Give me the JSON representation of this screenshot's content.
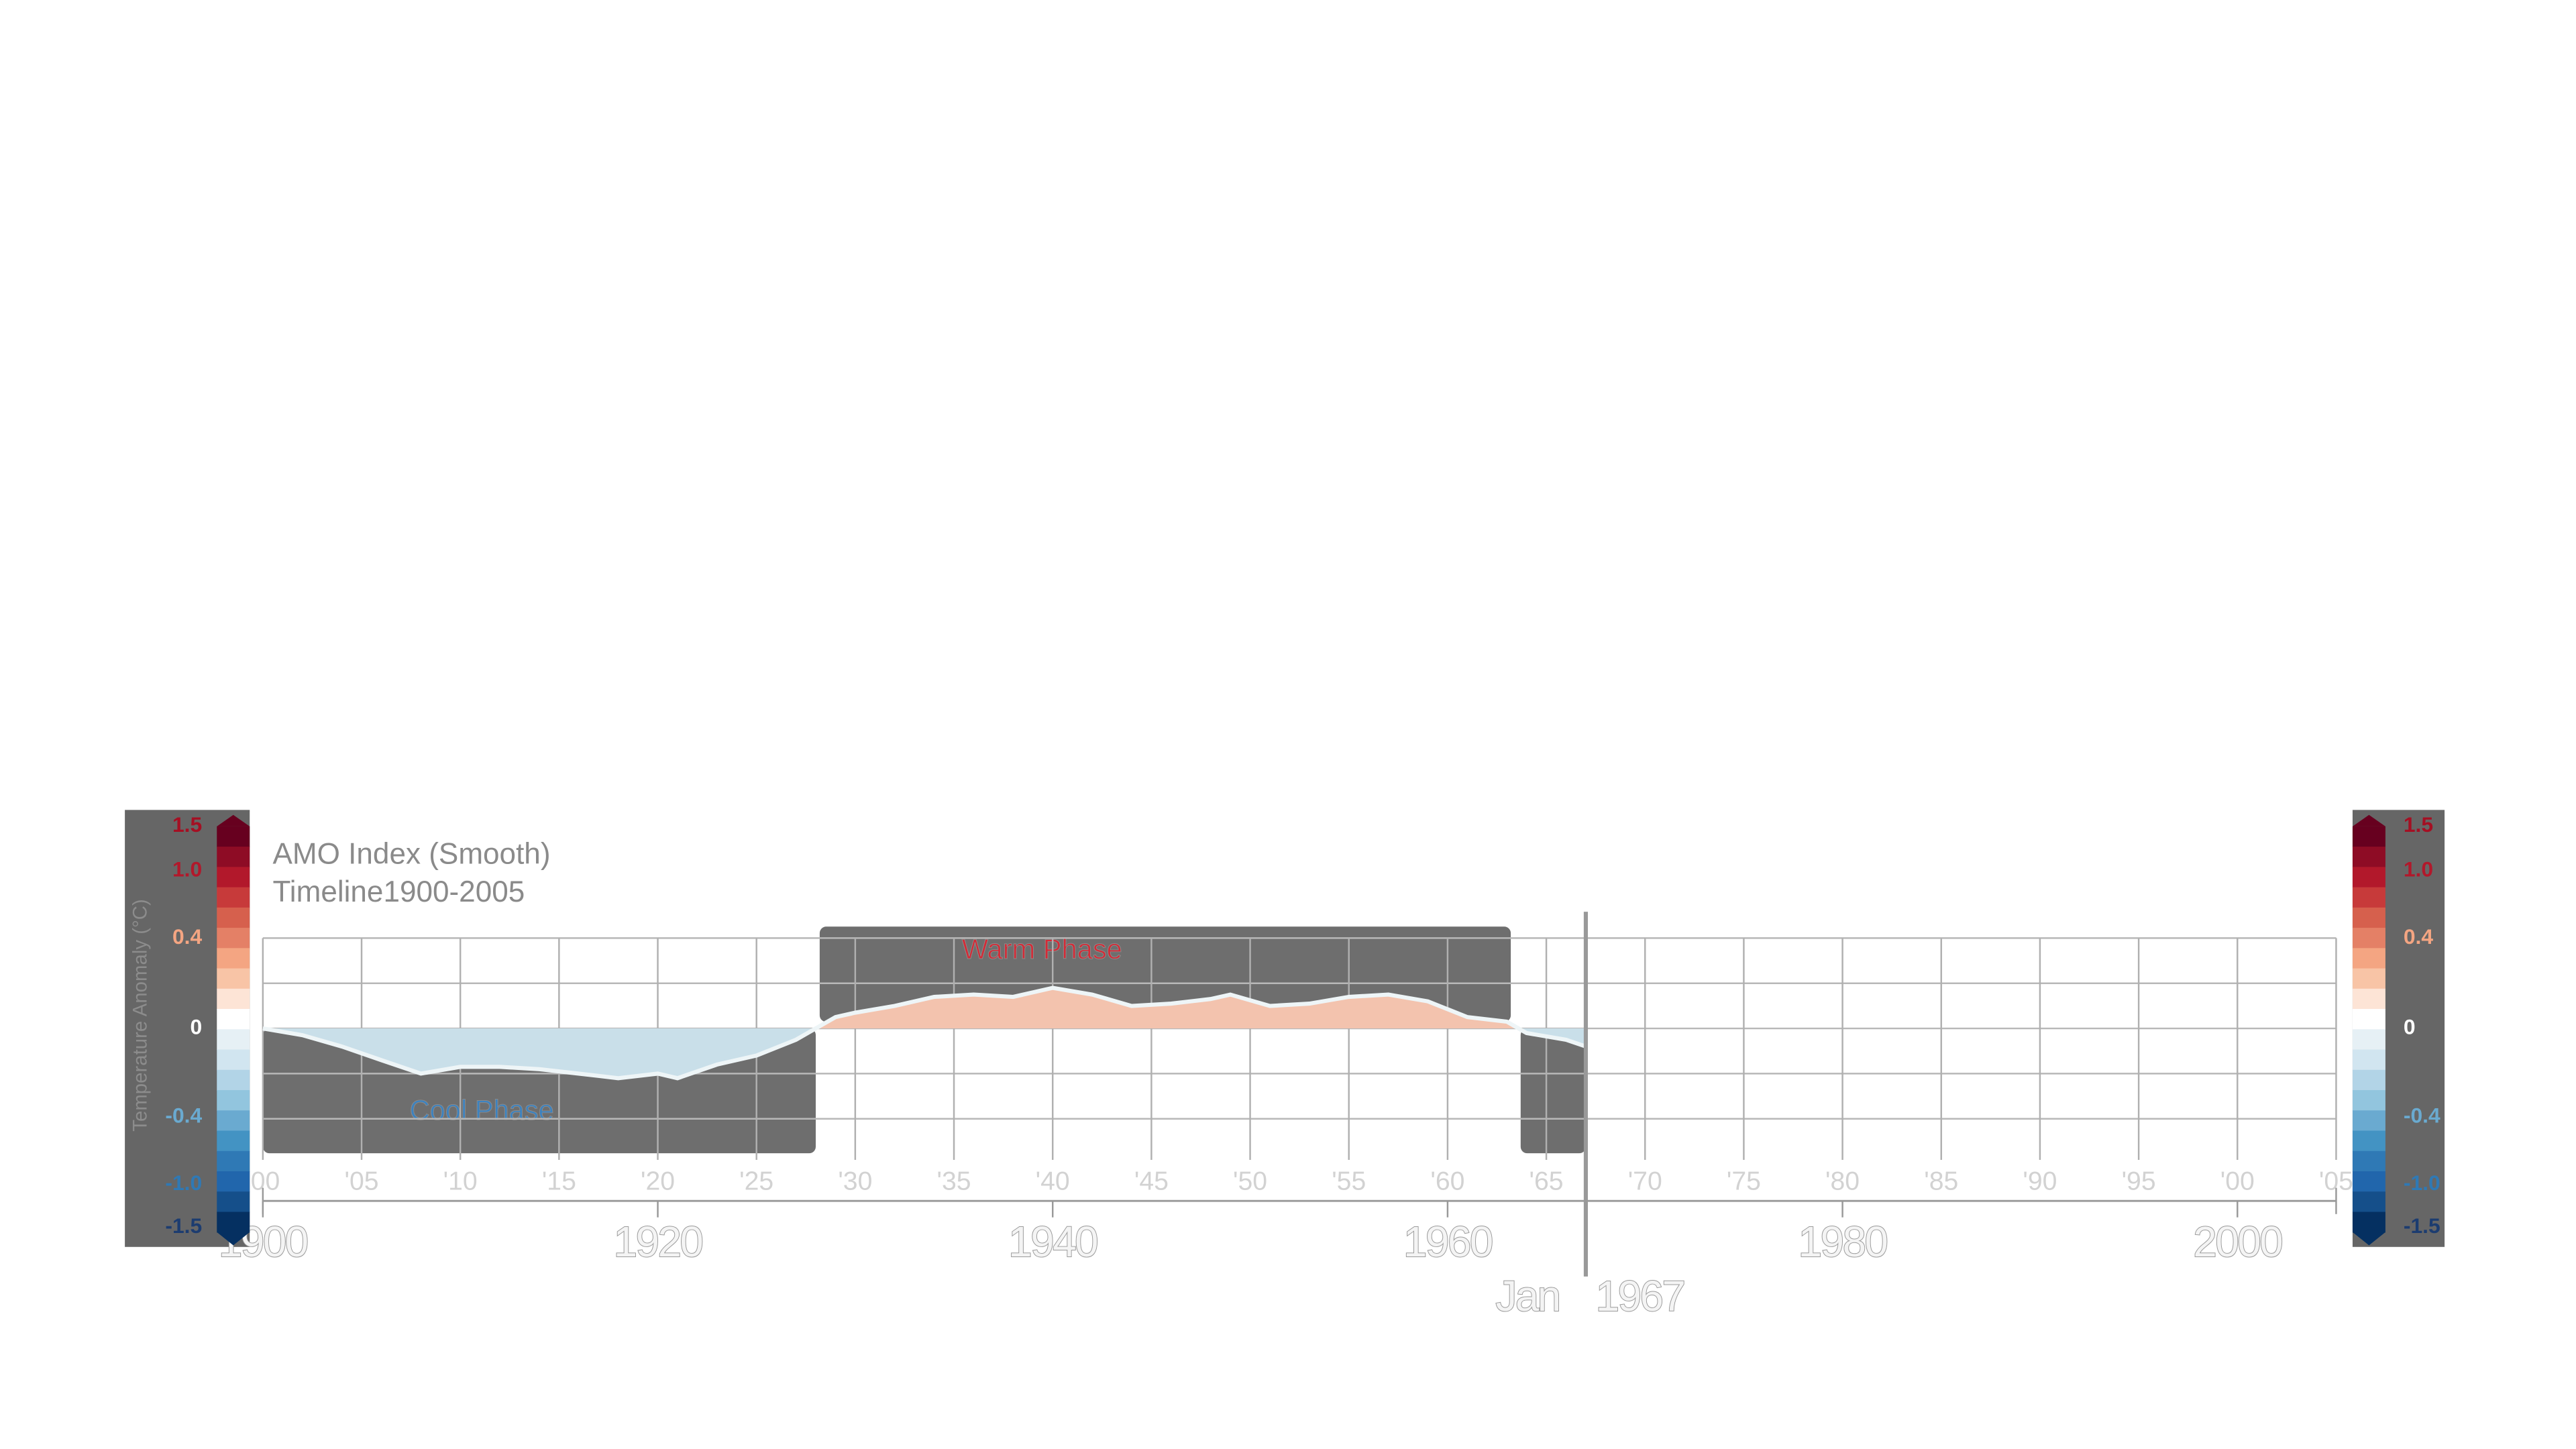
{
  "chart_data": {
    "type": "area",
    "title": "AMO Index (Smooth)",
    "subtitle": "Timeline1900-2005",
    "y_label": "Temperature Anomaly (°C)",
    "x": [
      1900,
      1902,
      1904,
      1906,
      1908,
      1910,
      1912,
      1914,
      1916,
      1918,
      1920,
      1921,
      1923,
      1925,
      1927,
      1928,
      1929,
      1930,
      1932,
      1934,
      1936,
      1938,
      1940,
      1942,
      1944,
      1946,
      1948,
      1949,
      1951,
      1953,
      1955,
      1957,
      1959,
      1961,
      1963,
      1964,
      1966,
      1967
    ],
    "values": [
      0,
      -0.03,
      -0.08,
      -0.14,
      -0.2,
      -0.17,
      -0.17,
      -0.18,
      -0.2,
      -0.22,
      -0.2,
      -0.22,
      -0.16,
      -0.12,
      -0.05,
      0,
      0.05,
      0.07,
      0.1,
      0.14,
      0.15,
      0.14,
      0.18,
      0.15,
      0.1,
      0.11,
      0.13,
      0.15,
      0.1,
      0.11,
      0.14,
      0.15,
      0.12,
      0.05,
      0.03,
      -0.02,
      -0.05,
      -0.08
    ],
    "pos_color": "#f3c3ae",
    "neg_color": "#c9dfe9",
    "line_color": "#eef5f7",
    "xlim": [
      1900,
      2005
    ],
    "ylim": [
      -0.4,
      0.4
    ],
    "yticks": [
      -0.4,
      -0.2,
      0,
      0.2,
      0.4
    ],
    "xticks": [
      {
        "value": 1900,
        "label": "'00"
      },
      {
        "value": 1905,
        "label": "'05"
      },
      {
        "value": 1910,
        "label": "'10"
      },
      {
        "value": 1915,
        "label": "'15"
      },
      {
        "value": 1920,
        "label": "'20"
      },
      {
        "value": 1925,
        "label": "'25"
      },
      {
        "value": 1930,
        "label": "'30"
      },
      {
        "value": 1935,
        "label": "'35"
      },
      {
        "value": 1940,
        "label": "'40"
      },
      {
        "value": 1945,
        "label": "'45"
      },
      {
        "value": 1950,
        "label": "'50"
      },
      {
        "value": 1955,
        "label": "'55"
      },
      {
        "value": 1960,
        "label": "'60"
      },
      {
        "value": 1965,
        "label": "'65"
      },
      {
        "value": 1970,
        "label": "'70"
      },
      {
        "value": 1975,
        "label": "'75"
      },
      {
        "value": 1980,
        "label": "'80"
      },
      {
        "value": 1985,
        "label": "'85"
      },
      {
        "value": 1990,
        "label": "'90"
      },
      {
        "value": 1995,
        "label": "'95"
      },
      {
        "value": 2000,
        "label": "'00"
      },
      {
        "value": 2005,
        "label": "'05"
      }
    ],
    "xticks_major": [
      1900,
      1920,
      1940,
      1960,
      1980,
      2000
    ],
    "grid": true,
    "annotations": [
      {
        "text": "Cool Phase",
        "x": [
          1900,
          1928
        ],
        "color": "#3b82c0",
        "side": "below"
      },
      {
        "text": "Warm Phase",
        "x": [
          1928.2,
          1963.2
        ],
        "color": "#d42a36",
        "side": "above"
      },
      {
        "x": [
          1963.7,
          1967
        ],
        "side": "below"
      }
    ],
    "current": {
      "month": "Jan",
      "year": 1967
    },
    "colorbar": {
      "ticks": [
        1.5,
        {
          "value": 1,
          "label": "1.0"
        },
        0.4,
        0,
        -0.4,
        {
          "value": -1,
          "label": "-1.0"
        },
        -1.5
      ],
      "label_colors": [
        "#a50f23",
        "#b2182b",
        "#f4a582",
        "#ffffff",
        "#6aaad0",
        "#2f79b5",
        "#1c3c70"
      ],
      "colors": [
        "#67001f",
        "#8e0c25",
        "#b2182b",
        "#c73a3a",
        "#d6604d",
        "#e48066",
        "#f4a582",
        "#f8c4a6",
        "#fde4d6",
        "#ffffff",
        "#e6f0f5",
        "#d1e5f0",
        "#b2d4e7",
        "#92c5de",
        "#6aaad0",
        "#4393c3",
        "#2f79b5",
        "#2166ac",
        "#154f8a",
        "#053061"
      ]
    }
  }
}
